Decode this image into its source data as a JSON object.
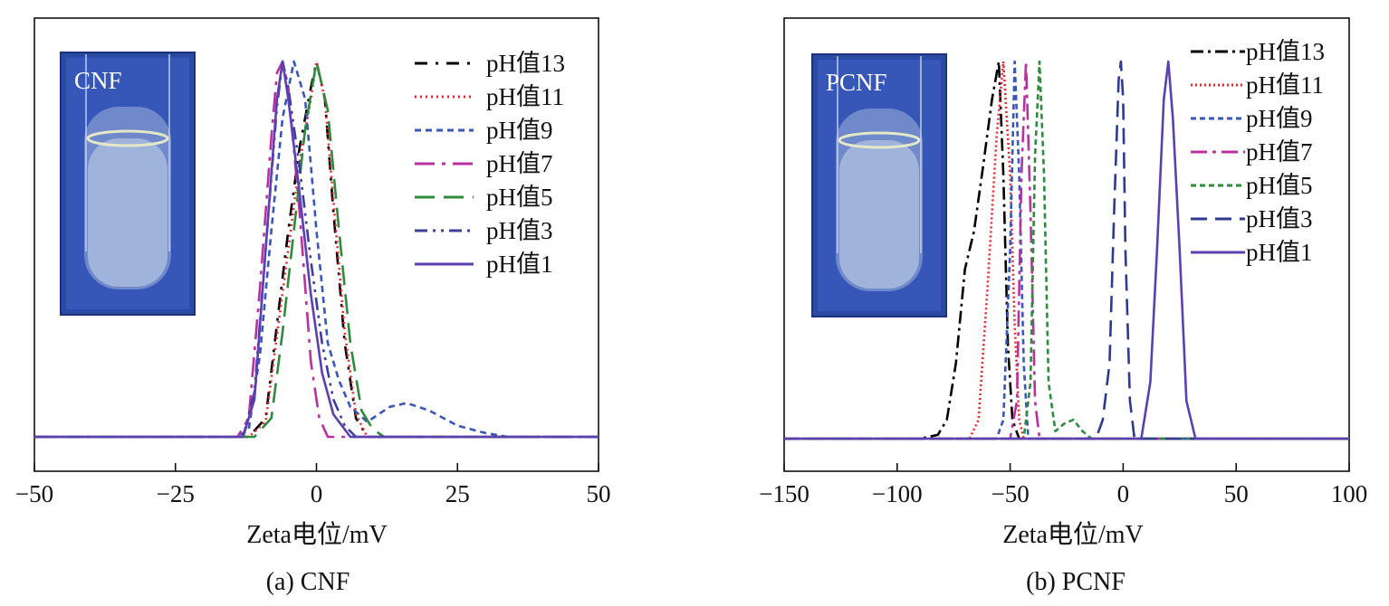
{
  "chart_data": [
    {
      "type": "line",
      "caption": "(a) CNF",
      "xlabel": "Zeta电位/mV",
      "ylabel": "",
      "xlim": [
        -50,
        50
      ],
      "xticks": [
        -50,
        -25,
        0,
        25,
        50
      ],
      "xtick_labels": [
        "−50",
        "−25",
        "0",
        "25",
        "50"
      ],
      "inset_label": "CNF",
      "legend_position": "top-right",
      "series": [
        {
          "name": "pH值13",
          "color": "#000000",
          "dash": "14,9,3,9",
          "points": [
            [
              -50,
              0
            ],
            [
              -12,
              0
            ],
            [
              -9,
              0.05
            ],
            [
              -7,
              0.3
            ],
            [
              -5,
              0.55
            ],
            [
              -3,
              0.77
            ],
            [
              -1,
              0.93
            ],
            [
              0,
              1
            ],
            [
              1.5,
              0.9
            ],
            [
              3,
              0.6
            ],
            [
              5,
              0.25
            ],
            [
              7,
              0.05
            ],
            [
              9,
              0
            ],
            [
              50,
              0
            ]
          ]
        },
        {
          "name": "pH值11",
          "color": "#e8252e",
          "dash": "2,4",
          "points": [
            [
              -50,
              0
            ],
            [
              -12,
              0
            ],
            [
              -9,
              0.04
            ],
            [
              -7,
              0.27
            ],
            [
              -5,
              0.5
            ],
            [
              -3,
              0.73
            ],
            [
              -1,
              0.9
            ],
            [
              0,
              1
            ],
            [
              1.5,
              0.9
            ],
            [
              3,
              0.63
            ],
            [
              5,
              0.28
            ],
            [
              7,
              0.06
            ],
            [
              9,
              0
            ],
            [
              50,
              0
            ]
          ]
        },
        {
          "name": "pH值9",
          "color": "#3a56b8",
          "dash": "7,5",
          "points": [
            [
              -50,
              0
            ],
            [
              -14,
              0
            ],
            [
              -12,
              0.02
            ],
            [
              -10,
              0.22
            ],
            [
              -8,
              0.55
            ],
            [
              -6,
              0.85
            ],
            [
              -4,
              1
            ],
            [
              -2,
              0.9
            ],
            [
              0,
              0.55
            ],
            [
              2,
              0.25
            ],
            [
              4,
              0.15
            ],
            [
              6,
              0.08
            ],
            [
              9,
              0.04
            ],
            [
              13,
              0.08
            ],
            [
              16,
              0.09
            ],
            [
              20,
              0.07
            ],
            [
              25,
              0.03
            ],
            [
              30,
              0.01
            ],
            [
              34,
              0
            ],
            [
              50,
              0
            ]
          ]
        },
        {
          "name": "pH值7",
          "color": "#b8329f",
          "dash": "22,8,4,8",
          "points": [
            [
              -50,
              0
            ],
            [
              -14,
              0
            ],
            [
              -12,
              0.05
            ],
            [
              -10,
              0.4
            ],
            [
              -8,
              0.8
            ],
            [
              -7,
              0.97
            ],
            [
              -6,
              1
            ],
            [
              -5,
              0.93
            ],
            [
              -3,
              0.6
            ],
            [
              -1,
              0.2
            ],
            [
              0.5,
              0.05
            ],
            [
              2,
              0
            ],
            [
              50,
              0
            ]
          ]
        },
        {
          "name": "pH值5",
          "color": "#2e8b3e",
          "dash": "22,10",
          "points": [
            [
              -50,
              0
            ],
            [
              -11,
              0
            ],
            [
              -8,
              0.05
            ],
            [
              -6,
              0.28
            ],
            [
              -4,
              0.55
            ],
            [
              -2,
              0.82
            ],
            [
              0,
              1
            ],
            [
              2,
              0.87
            ],
            [
              4,
              0.55
            ],
            [
              6,
              0.25
            ],
            [
              8,
              0.07
            ],
            [
              10,
              0.02
            ],
            [
              12,
              0
            ],
            [
              50,
              0
            ]
          ]
        },
        {
          "name": "pH值3",
          "color": "#3d3f9f",
          "dash": "14,6,3,6,3,6",
          "points": [
            [
              -50,
              0
            ],
            [
              -13,
              0
            ],
            [
              -11,
              0.12
            ],
            [
              -9,
              0.5
            ],
            [
              -7,
              0.88
            ],
            [
              -6,
              1
            ],
            [
              -5,
              0.93
            ],
            [
              -3,
              0.72
            ],
            [
              -1,
              0.47
            ],
            [
              1,
              0.25
            ],
            [
              3,
              0.1
            ],
            [
              5,
              0.03
            ],
            [
              7,
              0
            ],
            [
              50,
              0
            ]
          ]
        },
        {
          "name": "pH值1",
          "color": "#5c3fb0",
          "dash": "",
          "points": [
            [
              -50,
              0
            ],
            [
              -13,
              0
            ],
            [
              -11,
              0.1
            ],
            [
              -9,
              0.5
            ],
            [
              -7,
              0.9
            ],
            [
              -6,
              1
            ],
            [
              -5,
              0.9
            ],
            [
              -3,
              0.65
            ],
            [
              -1,
              0.38
            ],
            [
              1,
              0.17
            ],
            [
              3,
              0.06
            ],
            [
              6,
              0
            ],
            [
              50,
              0
            ]
          ]
        }
      ]
    },
    {
      "type": "line",
      "caption": "(b) PCNF",
      "xlabel": "Zeta电位/mV",
      "ylabel": "",
      "xlim": [
        -150,
        100
      ],
      "xticks": [
        -150,
        -100,
        -50,
        0,
        50,
        100
      ],
      "xtick_labels": [
        "−150",
        "−100",
        "−50",
        "0",
        "50",
        "100"
      ],
      "inset_label": "PCNF",
      "legend_position": "top-right",
      "series": [
        {
          "name": "pH值13",
          "color": "#000000",
          "dash": "14,5,3,5",
          "points": [
            [
              -150,
              0
            ],
            [
              -90,
              0
            ],
            [
              -82,
              0.01
            ],
            [
              -78,
              0.05
            ],
            [
              -74,
              0.2
            ],
            [
              -70,
              0.45
            ],
            [
              -66,
              0.55
            ],
            [
              -62,
              0.72
            ],
            [
              -58,
              0.9
            ],
            [
              -55,
              1
            ],
            [
              -53,
              0.7
            ],
            [
              -51,
              0.25
            ],
            [
              -49,
              0.05
            ],
            [
              -46,
              0
            ],
            [
              100,
              0
            ]
          ]
        },
        {
          "name": "pH值11",
          "color": "#e8252e",
          "dash": "2,3",
          "points": [
            [
              -150,
              0
            ],
            [
              -68,
              0
            ],
            [
              -64,
              0.05
            ],
            [
              -60,
              0.4
            ],
            [
              -56,
              0.8
            ],
            [
              -53,
              1
            ],
            [
              -50,
              0.7
            ],
            [
              -48,
              0.3
            ],
            [
              -46,
              0.05
            ],
            [
              -44,
              0
            ],
            [
              100,
              0
            ]
          ]
        },
        {
          "name": "pH值9",
          "color": "#3a56b8",
          "dash": "6,4",
          "points": [
            [
              -150,
              0
            ],
            [
              -56,
              0
            ],
            [
              -53,
              0.05
            ],
            [
              -50,
              0.5
            ],
            [
              -48,
              1
            ],
            [
              -46,
              0.7
            ],
            [
              -44,
              0.2
            ],
            [
              -42,
              0
            ],
            [
              100,
              0
            ]
          ]
        },
        {
          "name": "pH值7",
          "color": "#b8329f",
          "dash": "18,6,4,6",
          "points": [
            [
              -150,
              0
            ],
            [
              -50,
              0
            ],
            [
              -47,
              0.1
            ],
            [
              -45,
              0.7
            ],
            [
              -43,
              1
            ],
            [
              -41,
              0.6
            ],
            [
              -39,
              0.1
            ],
            [
              -37,
              0
            ],
            [
              100,
              0
            ]
          ]
        },
        {
          "name": "pH值5",
          "color": "#2e8b3e",
          "dash": "6,4",
          "points": [
            [
              -150,
              0
            ],
            [
              -44,
              0
            ],
            [
              -41,
              0.15
            ],
            [
              -39,
              0.75
            ],
            [
              -37,
              1
            ],
            [
              -35,
              0.7
            ],
            [
              -33,
              0.15
            ],
            [
              -30,
              0.02
            ],
            [
              -26,
              0.04
            ],
            [
              -22,
              0.05
            ],
            [
              -18,
              0.02
            ],
            [
              -14,
              0
            ],
            [
              100,
              0
            ]
          ]
        },
        {
          "name": "pH值3",
          "color": "#2e3a8f",
          "dash": "18,9",
          "points": [
            [
              -150,
              0
            ],
            [
              -12,
              0
            ],
            [
              -9,
              0.05
            ],
            [
              -6,
              0.2
            ],
            [
              -4,
              0.6
            ],
            [
              -2,
              0.95
            ],
            [
              -1,
              1
            ],
            [
              0,
              0.9
            ],
            [
              1,
              0.5
            ],
            [
              3,
              0.1
            ],
            [
              5,
              0
            ],
            [
              100,
              0
            ]
          ]
        },
        {
          "name": "pH值1",
          "color": "#5c3fb0",
          "dash": "",
          "points": [
            [
              -150,
              0
            ],
            [
              8,
              0
            ],
            [
              12,
              0.15
            ],
            [
              15,
              0.5
            ],
            [
              18,
              0.9
            ],
            [
              20,
              1
            ],
            [
              22,
              0.85
            ],
            [
              25,
              0.5
            ],
            [
              28,
              0.1
            ],
            [
              32,
              0
            ],
            [
              100,
              0
            ]
          ]
        }
      ]
    }
  ]
}
